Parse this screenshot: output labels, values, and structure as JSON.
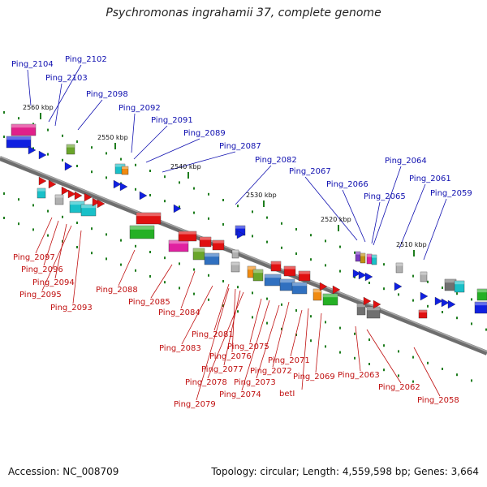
{
  "title": "Psychromonas ingrahamii 37, complete genome",
  "footer": {
    "accession": "Accession: NC_008709",
    "info": "Topology: circular; Length: 4,559,598 bp; Genes: 3,664"
  },
  "colors": {
    "blue_label": "#1010b0",
    "red_label": "#c01010",
    "axis": "#777777",
    "tick": "#1e7d1e"
  },
  "kbp_labels": [
    "2560 kbp",
    "2550 kbp",
    "2540 kbp",
    "2530 kbp",
    "2520 kbp",
    "2510 kbp"
  ],
  "top_labels": [
    "Ping_2104",
    "Ping_2102",
    "Ping_2103",
    "Ping_2098",
    "Ping_2092",
    "Ping_2091",
    "Ping_2089",
    "Ping_2087",
    "Ping_2082",
    "Ping_2067",
    "Ping_2066",
    "Ping_2065",
    "Ping_2064",
    "Ping_2061",
    "Ping_2059"
  ],
  "bottom_labels": [
    "Ping_2097",
    "Ping_2096",
    "Ping_2094",
    "Ping_2095",
    "Ping_2093",
    "Ping_2088",
    "Ping_2085",
    "Ping_2084",
    "Ping_2081",
    "Ping_2083",
    "Ping_2075",
    "Ping_2076",
    "Ping_2077",
    "Ping_2078",
    "Ping_2071",
    "Ping_2072",
    "Ping_2073",
    "Ping_2074",
    "Ping_2079",
    "Ping_2069",
    "betI",
    "Ping_2063",
    "Ping_2062",
    "Ping_2058"
  ]
}
